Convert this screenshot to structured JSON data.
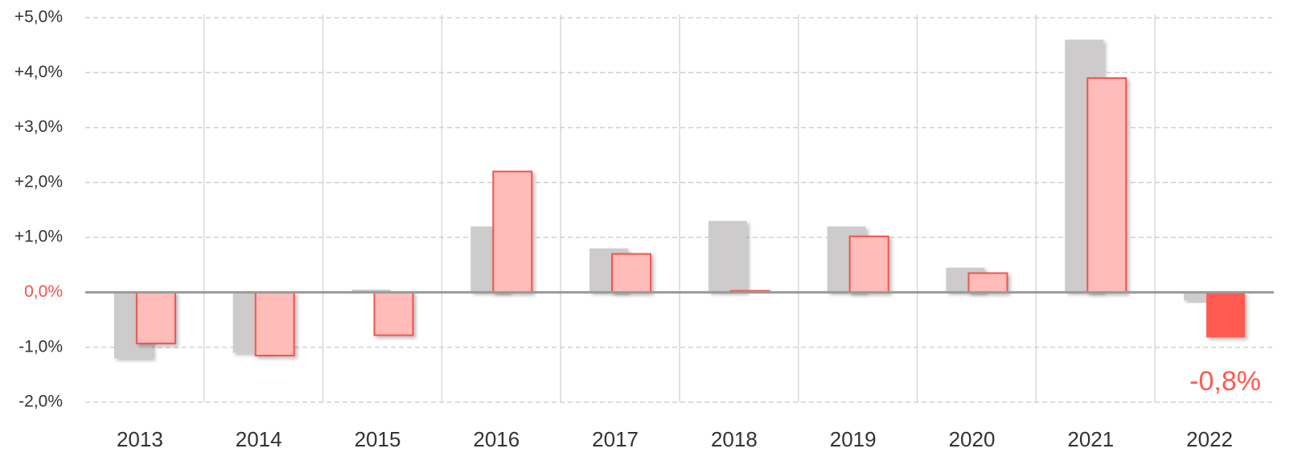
{
  "chart_data": {
    "type": "bar",
    "categories": [
      "2013",
      "2014",
      "2015",
      "2016",
      "2017",
      "2018",
      "2019",
      "2020",
      "2021",
      "2022"
    ],
    "series": [
      {
        "color": "#cdcbcb",
        "values": [
          -1.2,
          -1.1,
          0.05,
          1.2,
          0.8,
          1.3,
          1.2,
          0.45,
          4.6,
          -0.15
        ]
      },
      {
        "color": "#ffbcb8",
        "edge_color": "#f0544c",
        "colors": [
          "#ffbcb8",
          "#ffbcb8",
          "#ffbcb8",
          "#ffbcb8",
          "#ffbcb8",
          "#ffbcb8",
          "#ffbcb8",
          "#ffbcb8",
          "#ffbcb8",
          "#ff5a50"
        ],
        "values": [
          -0.93,
          -1.15,
          -0.78,
          2.2,
          0.7,
          0.03,
          1.02,
          0.35,
          3.9,
          -0.82
        ],
        "value_labels": [
          null,
          null,
          null,
          null,
          null,
          null,
          null,
          null,
          null,
          "-0,8%"
        ],
        "value_label_color": "#ff5a50"
      }
    ],
    "ylim": [
      -2,
      5
    ],
    "yticks": [
      {
        "value": -2,
        "label": "-2,0%"
      },
      {
        "value": -1,
        "label": "-1,0%"
      },
      {
        "value": 0,
        "label": "0,0%"
      },
      {
        "value": 1,
        "label": "+1,0%"
      },
      {
        "value": 2,
        "label": "+2,0%"
      },
      {
        "value": 3,
        "label": "+3,0%"
      },
      {
        "value": 4,
        "label": "+4,0%"
      },
      {
        "value": 5,
        "label": "+5,0%"
      }
    ],
    "zero_label_color": "#f0544c",
    "grid": true
  }
}
